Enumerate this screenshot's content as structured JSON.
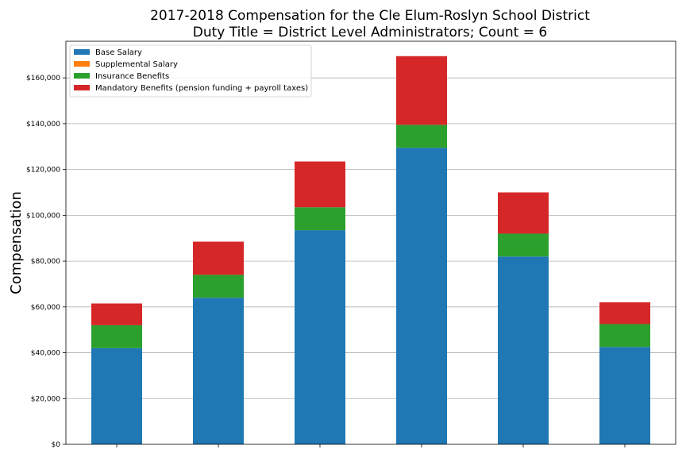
{
  "chart_data": {
    "type": "bar",
    "stacked": true,
    "title": "2017-2018 Compensation for the Cle Elum-Roslyn School District",
    "subtitle": "Duty Title = District Level Administrators; Count = 6",
    "xlabel": "",
    "ylabel": "Compensation",
    "ylim": [
      0,
      176000
    ],
    "yticks": [
      0,
      20000,
      40000,
      60000,
      80000,
      100000,
      120000,
      140000,
      160000
    ],
    "ytick_labels": [
      "$0",
      "$20,000",
      "$40,000",
      "$60,000",
      "$80,000",
      "$100,000",
      "$120,000",
      "$140,000",
      "$160,000"
    ],
    "grid": "horizontal",
    "legend_position": "top-left",
    "categories": [
      "",
      "",
      "",
      "",
      "",
      ""
    ],
    "series": [
      {
        "name": "Base Salary",
        "color": "#1f77b4",
        "values": [
          42000,
          64000,
          93500,
          129500,
          82000,
          42500
        ]
      },
      {
        "name": "Supplemental Salary",
        "color": "#ff7f0e",
        "values": [
          0,
          0,
          0,
          0,
          0,
          0
        ]
      },
      {
        "name": "Insurance Benefits",
        "color": "#2ca02c",
        "values": [
          10000,
          10000,
          10000,
          10000,
          10000,
          10000
        ]
      },
      {
        "name": "Mandatory Benefits (pension funding + payroll taxes)",
        "color": "#d62728",
        "values": [
          9500,
          14500,
          20000,
          30000,
          18000,
          9500
        ]
      }
    ]
  }
}
